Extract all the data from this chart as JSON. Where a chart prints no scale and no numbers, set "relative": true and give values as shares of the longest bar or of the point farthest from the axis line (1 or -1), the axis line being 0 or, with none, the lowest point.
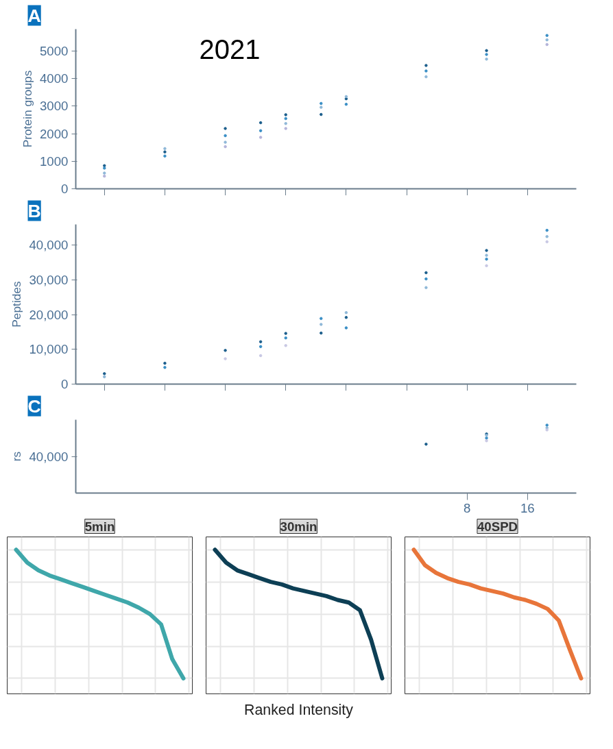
{
  "chart_data": [
    {
      "type": "scatter",
      "title": "A",
      "ylabel": "Protein groups",
      "log": "x",
      "xlim": [
        0.09,
        28
      ],
      "ylim": [
        0,
        5800
      ],
      "xticks": [
        {
          "value": 0.125,
          "label": null
        },
        {
          "value": 0.25,
          "label": null
        },
        {
          "value": 0.5,
          "label": null
        },
        {
          "value": 1,
          "label": null
        },
        {
          "value": 2,
          "label": null
        },
        {
          "value": 4,
          "label": null
        },
        {
          "value": 8,
          "label": null
        },
        {
          "value": 16,
          "label": null
        }
      ],
      "yticks": [
        0,
        1000,
        2000,
        3000,
        4000,
        5000
      ],
      "tick_labels": "y",
      "grid": false,
      "marker": "circle",
      "annotations": [
        "2021"
      ],
      "series": [
        {
          "color": "#1b5e8c",
          "x": [
            0.125,
            0.25,
            0.5,
            0.75,
            1,
            1.5,
            2,
            5,
            10
          ],
          "values": [
            840,
            1340,
            2190,
            2400,
            2690,
            2700,
            3270,
            4480,
            5020
          ]
        },
        {
          "color": "#3a8fc6",
          "x": [
            0.125,
            0.25,
            0.5,
            0.75,
            1,
            1.5,
            2,
            5,
            10,
            20
          ],
          "values": [
            750,
            1190,
            1930,
            2110,
            2550,
            3100,
            3070,
            4280,
            4880,
            5570
          ]
        },
        {
          "color": "#8fb8d8",
          "x": [
            0.125,
            0.25,
            0.5,
            1,
            1.5,
            2,
            5,
            10,
            20
          ],
          "values": [
            570,
            1460,
            1690,
            2370,
            2960,
            3350,
            4070,
            4710,
            5410
          ]
        },
        {
          "color": "#b4b4da",
          "x": [
            0.125,
            0.5,
            0.75,
            1,
            20
          ],
          "values": [
            460,
            1530,
            1870,
            2190,
            5240
          ]
        }
      ]
    },
    {
      "type": "scatter",
      "title": "B",
      "ylabel": "Peptides",
      "log": "x",
      "xlim": [
        0.09,
        28
      ],
      "ylim": [
        0,
        46000
      ],
      "xticks": [
        {
          "value": 0.125,
          "label": null
        },
        {
          "value": 0.25,
          "label": null
        },
        {
          "value": 0.5,
          "label": null
        },
        {
          "value": 1,
          "label": null
        },
        {
          "value": 2,
          "label": null
        },
        {
          "value": 4,
          "label": null
        },
        {
          "value": 8,
          "label": null
        },
        {
          "value": 16,
          "label": null
        }
      ],
      "yticks": [
        0,
        {
          "value": 10000,
          "label": "10,000"
        },
        {
          "value": 20000,
          "label": "20,000"
        },
        {
          "value": 30000,
          "label": "30,000"
        },
        {
          "value": 40000,
          "label": "40,000"
        }
      ],
      "tick_labels": "y",
      "grid": false,
      "marker": "circle",
      "series": [
        {
          "color": "#1b5e8c",
          "x": [
            0.125,
            0.25,
            0.5,
            0.75,
            1,
            1.5,
            2,
            5,
            10
          ],
          "values": [
            3000,
            6000,
            9700,
            12200,
            14600,
            14700,
            19200,
            32100,
            38500
          ]
        },
        {
          "color": "#3a8fc6",
          "x": [
            0.25,
            0.75,
            1,
            1.5,
            2,
            5,
            10,
            20
          ],
          "values": [
            4800,
            10800,
            13300,
            18900,
            16200,
            30300,
            36000,
            44300
          ]
        },
        {
          "color": "#8fb8d8",
          "x": [
            0.125,
            1.5,
            2,
            5,
            10,
            20
          ],
          "values": [
            2100,
            17200,
            20600,
            27800,
            37100,
            42500
          ]
        },
        {
          "color": "#c8c8e4",
          "x": [
            0.5,
            0.75,
            1,
            10,
            20
          ],
          "values": [
            7300,
            8200,
            11100,
            34100,
            41000
          ]
        }
      ]
    },
    {
      "type": "scatter",
      "title": "C",
      "ylabel": "rs",
      "log": "x",
      "xlim": [
        0.09,
        28
      ],
      "relative": true,
      "annotations": [
        "40,000"
      ],
      "xticks": [
        8,
        16
      ],
      "grid": false,
      "marker": "circle",
      "series": [
        {
          "color": "#1b5e8c",
          "x": [
            5,
            10
          ],
          "values": [
            0.72,
            0.87
          ]
        },
        {
          "color": "#3a8fc6",
          "x": [
            10,
            20
          ],
          "values": [
            0.81,
            1
          ]
        },
        {
          "color": "#8fb8d8",
          "x": [
            10,
            20
          ],
          "values": [
            0.85,
            0.96
          ]
        },
        {
          "color": "#c8c8e4",
          "x": [
            10,
            20
          ],
          "values": [
            0.77,
            0.93
          ]
        }
      ]
    },
    {
      "type": "line",
      "title": "5min",
      "relative": true,
      "grid": true,
      "categories": [
        null,
        null,
        null,
        null,
        null,
        null,
        null,
        null,
        null,
        null,
        null,
        null,
        null,
        null,
        null,
        null
      ],
      "series": [
        {
          "color": "#3fa7aa",
          "values": [
            1.0,
            0.9,
            0.84,
            0.8,
            0.77,
            0.74,
            0.71,
            0.68,
            0.65,
            0.62,
            0.59,
            0.55,
            0.5,
            0.42,
            0.15,
            0.0
          ]
        }
      ]
    },
    {
      "type": "line",
      "title": "30min",
      "xlabel": "Ranked Intensity",
      "relative": true,
      "grid": true,
      "categories": [
        null,
        null,
        null,
        null,
        null,
        null,
        null,
        null,
        null,
        null,
        null,
        null,
        null,
        null,
        null,
        null
      ],
      "series": [
        {
          "color": "#0d3f55",
          "values": [
            1.0,
            0.9,
            0.84,
            0.81,
            0.78,
            0.75,
            0.73,
            0.7,
            0.68,
            0.66,
            0.64,
            0.61,
            0.59,
            0.53,
            0.3,
            0.0
          ]
        }
      ]
    },
    {
      "type": "line",
      "title": "40SPD",
      "relative": true,
      "grid": true,
      "categories": [
        null,
        null,
        null,
        null,
        null,
        null,
        null,
        null,
        null,
        null,
        null,
        null,
        null,
        null,
        null,
        null
      ],
      "series": [
        {
          "color": "#e8753a",
          "values": [
            1.0,
            0.88,
            0.82,
            0.78,
            0.75,
            0.73,
            0.7,
            0.68,
            0.66,
            0.63,
            0.61,
            0.58,
            0.54,
            0.45,
            0.22,
            0.0
          ]
        }
      ]
    }
  ]
}
